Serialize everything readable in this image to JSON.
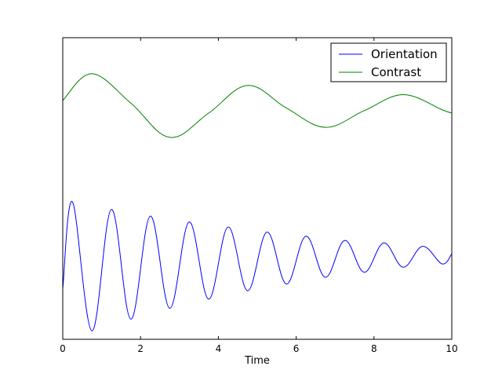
{
  "chart_data": {
    "type": "line",
    "title": "",
    "xlabel": "Time",
    "ylabel": "",
    "xlim": [
      0,
      10
    ],
    "xticks": [
      "0",
      "2",
      "4",
      "6",
      "8",
      "10"
    ],
    "yticks_shown": false,
    "grid": false,
    "legend_position": "top-right",
    "series": [
      {
        "name": "Orientation",
        "color": "#0000ff",
        "x": [
          0,
          0.25,
          0.75,
          1.25,
          1.75,
          2.25,
          2.75,
          3.25,
          3.75,
          4.25,
          4.75,
          5.25,
          5.75,
          6.25,
          6.75,
          7.25,
          7.75,
          8.25,
          8.75,
          9.25,
          9.75,
          10
        ],
        "y": [
          -0.5,
          0.54,
          -1.0,
          0.45,
          -0.86,
          0.37,
          -0.73,
          0.3,
          -0.62,
          0.24,
          -0.52,
          0.18,
          -0.44,
          0.13,
          -0.36,
          0.08,
          -0.3,
          0.05,
          -0.24,
          0.01,
          -0.2,
          -0.08
        ]
      },
      {
        "name": "Contrast",
        "color": "#008000",
        "x": [
          0,
          0.75,
          1.75,
          2.75,
          3.75,
          4.75,
          5.75,
          6.75,
          7.75,
          8.75,
          9.75,
          10
        ],
        "y": [
          1.75,
          2.07,
          1.72,
          1.31,
          1.6,
          1.93,
          1.66,
          1.43,
          1.63,
          1.82,
          1.64,
          1.6
        ]
      }
    ]
  }
}
